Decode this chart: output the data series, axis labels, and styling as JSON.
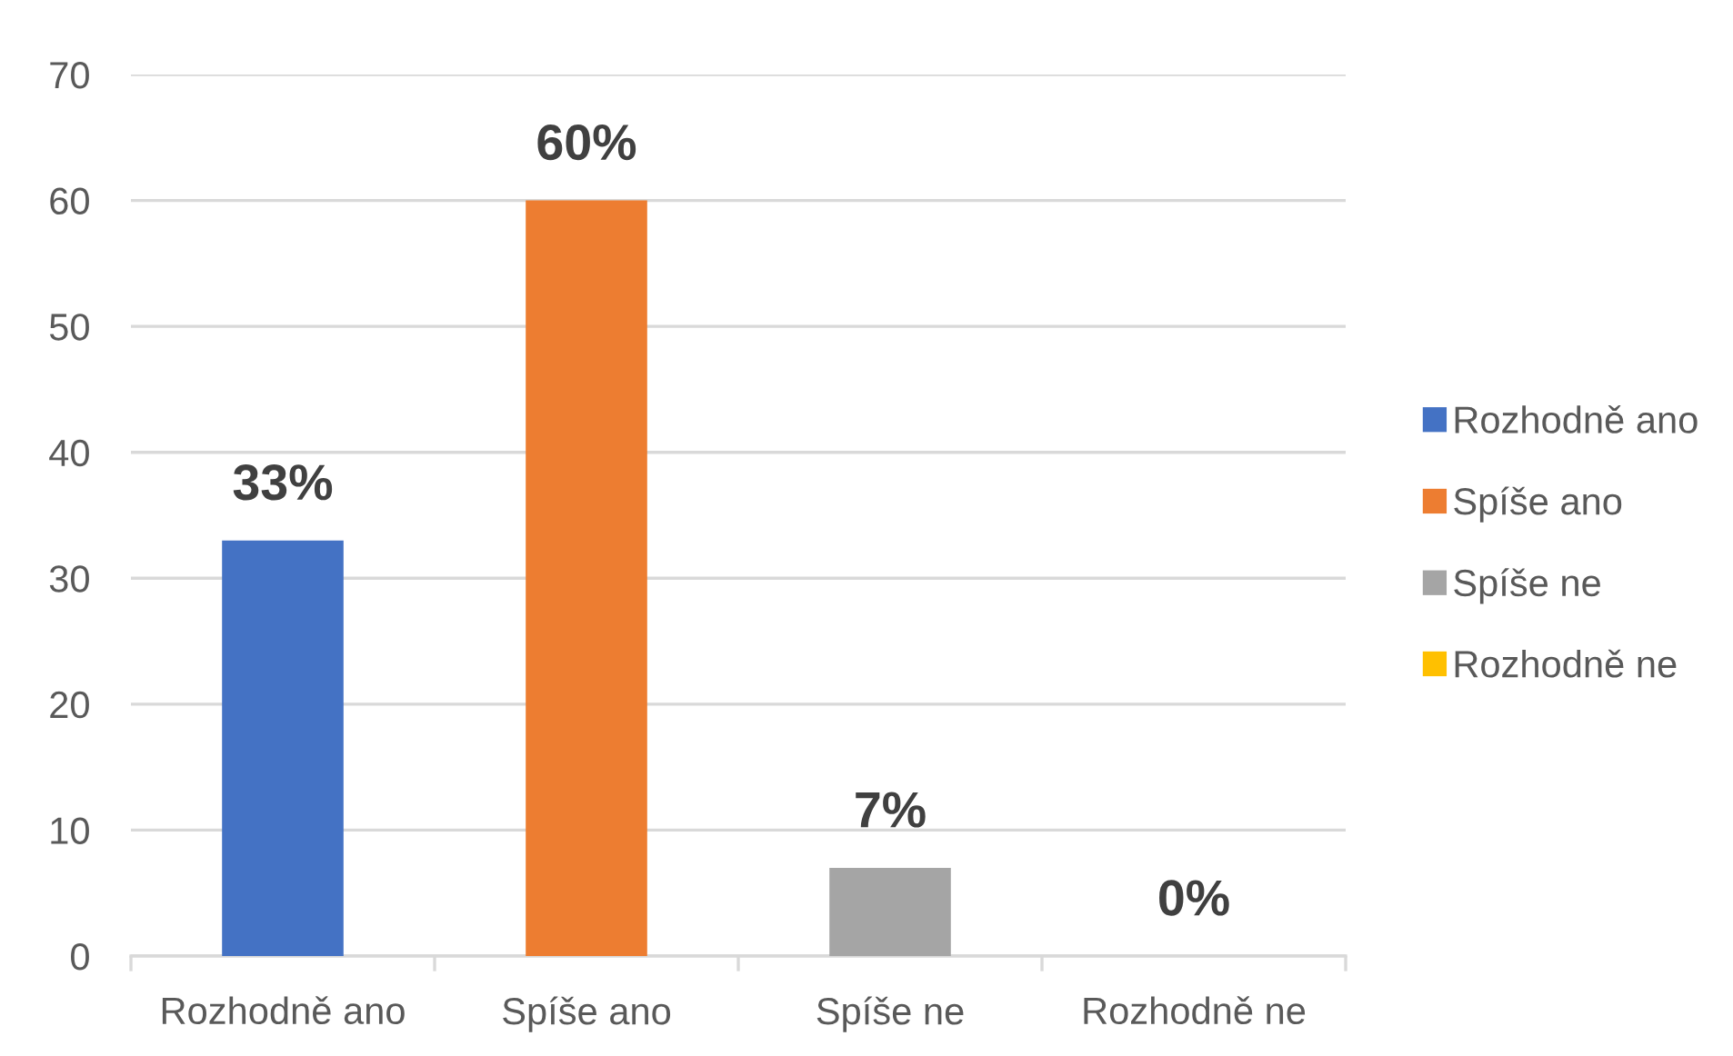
{
  "chart_data": {
    "type": "bar",
    "categories": [
      "Rozhodně ano",
      "Spíše ano",
      "Spíše ne",
      "Rozhodně ne"
    ],
    "series": [
      {
        "name": "Rozhodně ano",
        "color": "#4472c4",
        "values": [
          33,
          null,
          null,
          null
        ],
        "value_labels": [
          "33%",
          null,
          null,
          null
        ]
      },
      {
        "name": "Spíše ano",
        "color": "#ed7d31",
        "values": [
          null,
          60,
          null,
          null
        ],
        "value_labels": [
          null,
          "60%",
          null,
          null
        ]
      },
      {
        "name": "Spíše ne",
        "color": "#a5a5a5",
        "values": [
          null,
          null,
          7,
          null
        ],
        "value_labels": [
          null,
          null,
          "7%",
          null
        ]
      },
      {
        "name": "Rozhodně ne",
        "color": "#ffc000",
        "values": [
          null,
          null,
          null,
          0
        ],
        "value_labels": [
          null,
          null,
          null,
          "0%"
        ]
      }
    ],
    "ylim": [
      0,
      70
    ],
    "yticks": [
      0,
      10,
      20,
      30,
      40,
      50,
      60,
      70
    ],
    "grid": "y",
    "legend": "right"
  }
}
